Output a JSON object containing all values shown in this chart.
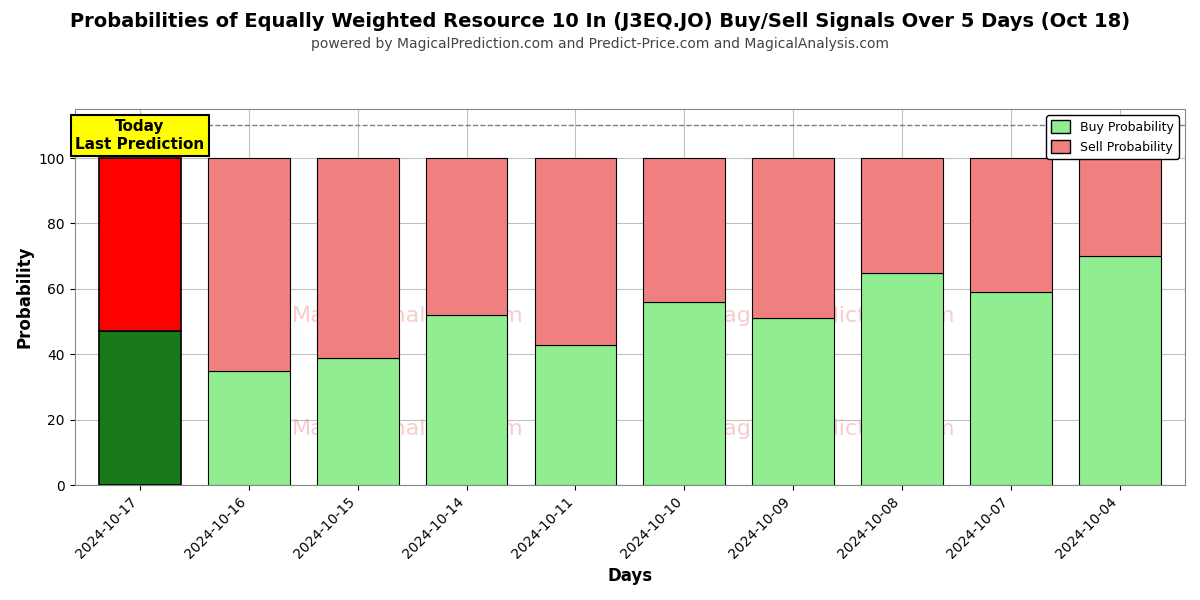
{
  "title": "Probabilities of Equally Weighted Resource 10 In (J3EQ.JO) Buy/Sell Signals Over 5 Days (Oct 18)",
  "subtitle": "powered by MagicalPrediction.com and Predict-Price.com and MagicalAnalysis.com",
  "xlabel": "Days",
  "ylabel": "Probability",
  "categories": [
    "2024-10-17",
    "2024-10-16",
    "2024-10-15",
    "2024-10-14",
    "2024-10-11",
    "2024-10-10",
    "2024-10-09",
    "2024-10-08",
    "2024-10-07",
    "2024-10-04"
  ],
  "buy_values": [
    47,
    35,
    39,
    52,
    43,
    56,
    51,
    65,
    59,
    70
  ],
  "sell_values": [
    53,
    65,
    61,
    48,
    57,
    44,
    49,
    35,
    41,
    30
  ],
  "today_buy_color": "#1a7a1a",
  "today_sell_color": "#ff0000",
  "buy_color": "#90ee90",
  "sell_color": "#f08080",
  "bar_edge_color": "#000000",
  "ylim": [
    0,
    115
  ],
  "yticks": [
    0,
    20,
    40,
    60,
    80,
    100
  ],
  "dashed_line_y": 110,
  "legend_buy_label": "Buy Probability",
  "legend_sell_label": "Sell Probability",
  "today_label_line1": "Today",
  "today_label_line2": "Last Prediction",
  "today_box_color": "#ffff00",
  "background_color": "#ffffff",
  "grid_color": "#c0c0c0",
  "title_fontsize": 14,
  "subtitle_fontsize": 10,
  "axis_label_fontsize": 12,
  "tick_fontsize": 10
}
